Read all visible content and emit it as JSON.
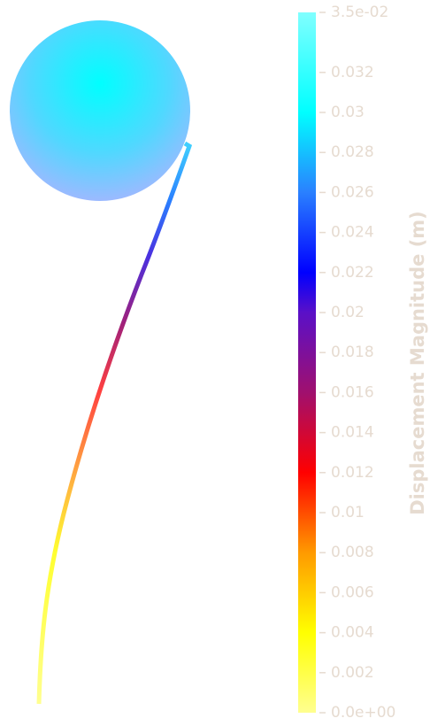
{
  "colorbar": {
    "title": "Displacement Magnitude (m)",
    "range": [
      0,
      0.035
    ],
    "ticks": [
      {
        "value": 0,
        "label": "0.0e+00"
      },
      0.002,
      0.004,
      0.006,
      0.008,
      0.01,
      0.012,
      0.014,
      0.016,
      0.018,
      0.02,
      0.022,
      0.024,
      0.026,
      0.028,
      0.03,
      0.032,
      {
        "value": 0.035,
        "label": "3.5e-02"
      }
    ],
    "colormap": [
      {
        "value": 0,
        "color": "#ffff90"
      },
      {
        "value": 0.004,
        "color": "#ffff00"
      },
      {
        "value": 0.008,
        "color": "#ff9a00"
      },
      {
        "value": 0.012,
        "color": "#ff0000"
      },
      {
        "value": 0.016,
        "color": "#a0106e"
      },
      {
        "value": 0.02,
        "color": "#5a10c8"
      },
      {
        "value": 0.022,
        "color": "#0000ff"
      },
      {
        "value": 0.026,
        "color": "#2a80ff"
      },
      {
        "value": 0.03,
        "color": "#00ffff"
      },
      {
        "value": 0.035,
        "color": "#80ffff"
      }
    ]
  }
}
